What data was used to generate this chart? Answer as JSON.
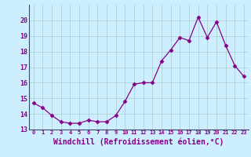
{
  "x": [
    0,
    1,
    2,
    3,
    4,
    5,
    6,
    7,
    8,
    9,
    10,
    11,
    12,
    13,
    14,
    15,
    16,
    17,
    18,
    19,
    20,
    21,
    22,
    23
  ],
  "y": [
    14.7,
    14.4,
    13.9,
    13.5,
    13.4,
    13.4,
    13.6,
    13.5,
    13.5,
    13.9,
    14.8,
    15.9,
    16.0,
    16.0,
    17.4,
    18.1,
    18.9,
    18.7,
    20.2,
    18.9,
    19.9,
    18.4,
    17.1,
    16.4
  ],
  "line_color": "#880088",
  "marker": "D",
  "marker_size": 2.5,
  "bg_color": "#cceeff",
  "grid_color": "#aacccc",
  "xlabel": "Windchill (Refroidissement éolien,°C)",
  "xlabel_fontsize": 7,
  "tick_label_color": "#880088",
  "axis_label_color": "#880088",
  "ylim": [
    13,
    21
  ],
  "yticks": [
    13,
    14,
    15,
    16,
    17,
    18,
    19,
    20
  ],
  "xlim": [
    -0.5,
    23.5
  ]
}
